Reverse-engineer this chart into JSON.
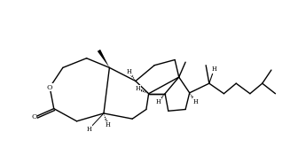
{
  "bg_color": "#ffffff",
  "bond_color": "#000000",
  "bond_lw": 1.0,
  "fig_width": 3.27,
  "fig_height": 1.75,
  "dpi": 100,
  "xlim": [
    -0.5,
    16.0
  ],
  "ylim": [
    -0.5,
    8.5
  ]
}
